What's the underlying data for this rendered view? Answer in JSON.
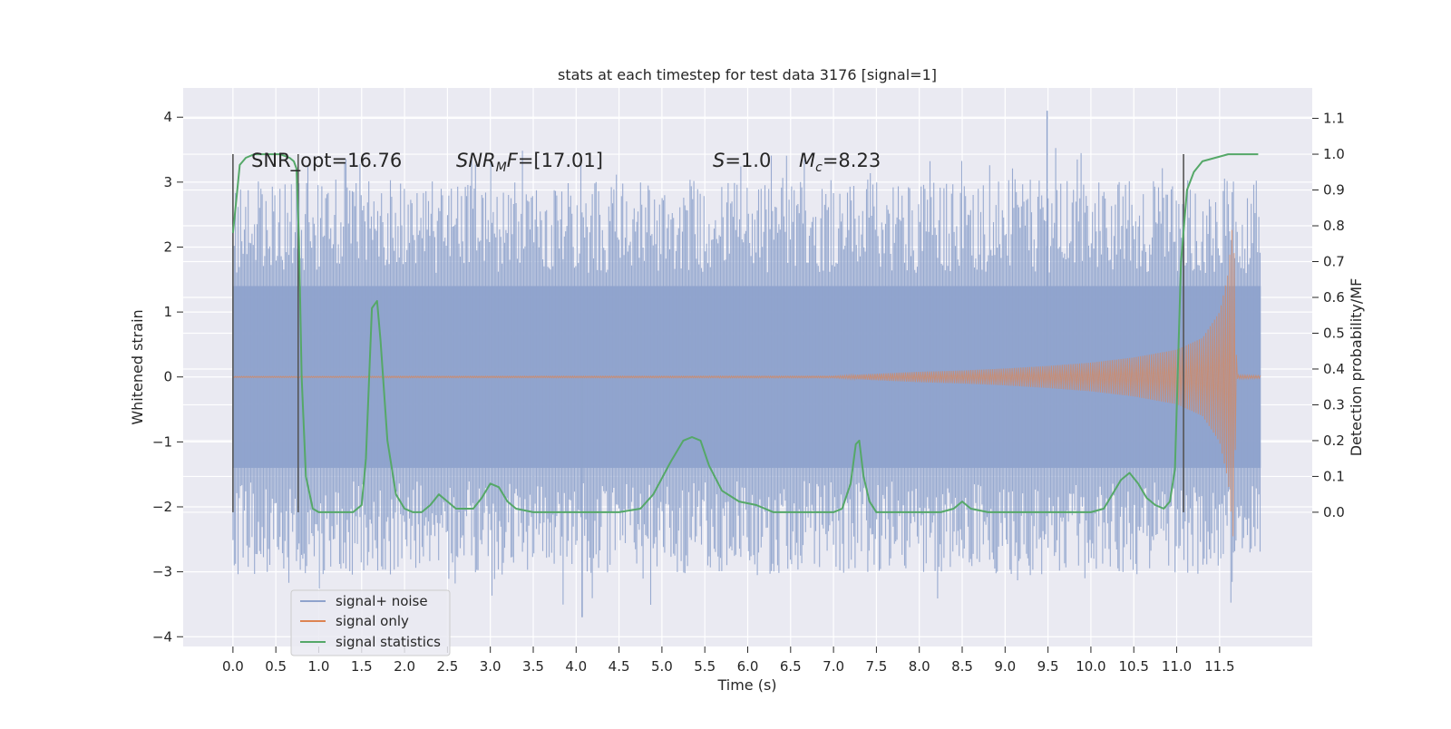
{
  "chart_data": {
    "type": "line",
    "title": "stats at each timestep for test data 3176 [signal=1]",
    "xlabel": "Time (s)",
    "ylabel": "Whitened strain",
    "y2label": "Detection probability/MF",
    "xlim": [
      -0.58,
      12.58
    ],
    "ylim": [
      -4.15,
      4.45
    ],
    "y2lim": [
      -0.375,
      1.185
    ],
    "xticks": [
      0.0,
      0.5,
      1.0,
      1.5,
      2.0,
      2.5,
      3.0,
      3.5,
      4.0,
      4.5,
      5.0,
      5.5,
      6.0,
      6.5,
      7.0,
      7.5,
      8.0,
      8.5,
      9.0,
      9.5,
      10.0,
      10.5,
      11.0,
      11.5
    ],
    "xtick_labels": [
      "0.0",
      "0.5",
      "1.0",
      "1.5",
      "2.0",
      "2.5",
      "3.0",
      "3.5",
      "4.0",
      "4.5",
      "5.0",
      "5.5",
      "6.0",
      "6.5",
      "7.0",
      "7.5",
      "8.0",
      "8.5",
      "9.0",
      "9.5",
      "10.0",
      "10.5",
      "11.0",
      "11.5"
    ],
    "yticks": [
      -4,
      -3,
      -2,
      -1,
      0,
      1,
      2,
      3,
      4
    ],
    "ytick_labels": [
      "−4",
      "−3",
      "−2",
      "−1",
      "0",
      "1",
      "2",
      "3",
      "4"
    ],
    "y2ticks": [
      0.0,
      0.1,
      0.2,
      0.3,
      0.4,
      0.5,
      0.6,
      0.7,
      0.8,
      0.9,
      1.0,
      1.1
    ],
    "y2tick_labels": [
      "0.0",
      "0.1",
      "0.2",
      "0.3",
      "0.4",
      "0.5",
      "0.6",
      "0.7",
      "0.8",
      "0.9",
      "1.0",
      "1.1"
    ],
    "grid": true,
    "legend_position": "lower-left",
    "annotations": {
      "snr_opt": "SNR_opt=16.76",
      "snr_mf": "=[17.01]",
      "s_val": "=1.0",
      "mc_val": "=8.23"
    },
    "vertical_markers": [
      0.0,
      0.76,
      11.08
    ],
    "series": [
      {
        "name": "signal+ noise",
        "color": "#8fa3cc",
        "axis": "left",
        "description_only": true,
        "t_start": 0.0,
        "t_end": 11.98,
        "envelope_dense": 1.4,
        "spike_typical_range": [
          1.6,
          3.3
        ],
        "peak": {
          "t": 9.49,
          "value": 4.1
        },
        "trough": {
          "t": 4.07,
          "value": -3.7
        }
      },
      {
        "name": "signal only",
        "color": "#dd8452",
        "axis": "left",
        "t_merge": 11.66,
        "amplitude": [
          [
            0.0,
            0.01
          ],
          [
            7.0,
            0.015
          ],
          [
            7.5,
            0.05
          ],
          [
            8.0,
            0.08
          ],
          [
            8.5,
            0.1
          ],
          [
            9.0,
            0.13
          ],
          [
            9.5,
            0.17
          ],
          [
            10.0,
            0.22
          ],
          [
            10.5,
            0.3
          ],
          [
            11.0,
            0.42
          ],
          [
            11.3,
            0.6
          ],
          [
            11.5,
            1.0
          ],
          [
            11.6,
            1.6
          ],
          [
            11.66,
            2.5
          ],
          [
            11.7,
            0.03
          ],
          [
            12.0,
            0.02
          ]
        ]
      },
      {
        "name": "signal statistics",
        "color": "#55a868",
        "axis": "right",
        "x": [
          0.0,
          0.03,
          0.08,
          0.15,
          0.25,
          0.4,
          0.55,
          0.66,
          0.71,
          0.74,
          0.77,
          0.8,
          0.85,
          0.93,
          1.0,
          1.1,
          1.25,
          1.4,
          1.5,
          1.55,
          1.62,
          1.68,
          1.72,
          1.8,
          1.9,
          2.0,
          2.1,
          2.2,
          2.3,
          2.4,
          2.5,
          2.6,
          2.8,
          2.9,
          3.0,
          3.1,
          3.2,
          3.3,
          3.5,
          3.75,
          4.0,
          4.25,
          4.5,
          4.75,
          4.9,
          5.1,
          5.25,
          5.35,
          5.45,
          5.55,
          5.7,
          5.9,
          6.1,
          6.3,
          6.5,
          6.75,
          7.0,
          7.1,
          7.2,
          7.26,
          7.3,
          7.35,
          7.42,
          7.5,
          7.7,
          8.0,
          8.25,
          8.4,
          8.5,
          8.6,
          8.8,
          9.0,
          9.25,
          9.5,
          9.75,
          10.0,
          10.15,
          10.25,
          10.35,
          10.45,
          10.55,
          10.65,
          10.75,
          10.85,
          10.92,
          10.98,
          11.05,
          11.12,
          11.2,
          11.3,
          11.45,
          11.6,
          11.75,
          11.9,
          11.95
        ],
        "values": [
          0.78,
          0.85,
          0.97,
          0.99,
          1.0,
          1.0,
          1.0,
          0.99,
          0.98,
          0.96,
          0.76,
          0.38,
          0.1,
          0.01,
          0.0,
          0.0,
          0.0,
          0.0,
          0.02,
          0.15,
          0.57,
          0.59,
          0.48,
          0.2,
          0.05,
          0.01,
          0.0,
          0.0,
          0.02,
          0.05,
          0.03,
          0.01,
          0.01,
          0.04,
          0.08,
          0.07,
          0.03,
          0.01,
          0.0,
          0.0,
          0.0,
          0.0,
          0.0,
          0.01,
          0.05,
          0.14,
          0.2,
          0.21,
          0.2,
          0.13,
          0.06,
          0.03,
          0.02,
          0.0,
          0.0,
          0.0,
          0.0,
          0.01,
          0.08,
          0.19,
          0.2,
          0.1,
          0.03,
          0.0,
          0.0,
          0.0,
          0.0,
          0.01,
          0.03,
          0.01,
          0.0,
          0.0,
          0.0,
          0.0,
          0.0,
          0.0,
          0.01,
          0.05,
          0.09,
          0.11,
          0.08,
          0.04,
          0.02,
          0.01,
          0.03,
          0.12,
          0.7,
          0.9,
          0.95,
          0.98,
          0.99,
          1.0,
          1.0,
          1.0,
          1.0
        ]
      }
    ]
  }
}
